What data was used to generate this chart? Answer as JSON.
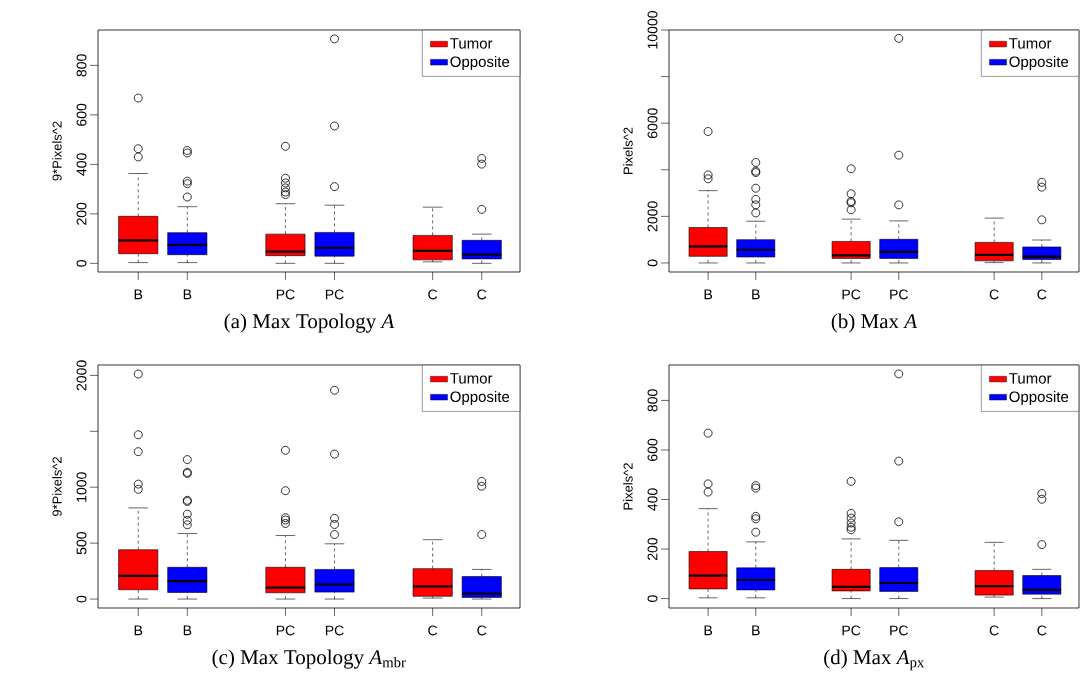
{
  "chart_data": [
    {
      "type": "box",
      "title": "(a) Max Topology *A*",
      "ylabel": "9*Pixels^2",
      "categories": [
        "B",
        "B",
        null,
        "PC",
        "PC",
        null,
        "C",
        "C"
      ],
      "ylim": [
        -35,
        943
      ],
      "yticks": [
        0,
        200,
        400,
        600,
        800
      ],
      "legend": "top right",
      "marker": "circle",
      "line_style": "dashed",
      "series": [
        {
          "name": "Tumor",
          "color": "#ff0000",
          "boxes": [
            {
              "low": 3,
              "q1": 39,
              "median": 93,
              "q3": 190,
              "high": 363,
              "outliers": [
                668,
                463,
                430
              ]
            },
            null,
            null,
            {
              "low": 0,
              "q1": 31,
              "median": 47,
              "q3": 118,
              "high": 241,
              "outliers": [
                278,
                288,
                305,
                325,
                344,
                473
              ]
            },
            null,
            null,
            {
              "low": 6,
              "q1": 14,
              "median": 50,
              "q3": 113,
              "high": 227
            },
            null
          ]
        },
        {
          "name": "Opposite",
          "color": "#0000ff",
          "boxes": [
            null,
            {
              "low": 3,
              "q1": 35,
              "median": 75,
              "q3": 124,
              "high": 229,
              "outliers": [
                268,
                322,
                332,
                446,
                456
              ]
            },
            null,
            null,
            {
              "low": 0,
              "q1": 29,
              "median": 63,
              "q3": 125,
              "high": 235,
              "outliers": [
                310,
                555,
                907
              ]
            },
            null,
            null,
            {
              "low": 0,
              "q1": 18,
              "median": 35,
              "q3": 93,
              "high": 118,
              "outliers": [
                218,
                401,
                424
              ]
            }
          ]
        }
      ]
    },
    {
      "type": "box",
      "title": "(b) Max *A*",
      "ylabel": "Pixels^2",
      "categories": [
        "B",
        "B",
        null,
        "PC",
        "PC",
        null,
        "C",
        "C"
      ],
      "ylim": [
        -388,
        10000
      ],
      "yticks": [
        0,
        2000,
        {
          "value": 4000,
          "label": null
        },
        6000,
        {
          "value": 8000,
          "label": null
        },
        10000
      ],
      "legend": "top right",
      "marker": "circle",
      "line_style": "dashed",
      "series": [
        {
          "name": "Tumor",
          "color": "#ff0000",
          "boxes": [
            {
              "low": 0,
              "q1": 284,
              "median": 716,
              "q3": 1522,
              "high": 3104,
              "outliers": [
                5642,
                3776,
                3612
              ]
            },
            null,
            null,
            {
              "low": 0,
              "q1": 194,
              "median": 328,
              "q3": 925,
              "high": 1881,
              "outliers": [
                2284,
                2582,
                2642,
                2970,
                4045
              ]
            },
            null,
            null,
            {
              "low": 15,
              "q1": 90,
              "median": 343,
              "q3": 881,
              "high": 1925
            },
            null
          ]
        },
        {
          "name": "Opposite",
          "color": "#0000ff",
          "boxes": [
            null,
            {
              "low": 0,
              "q1": 254,
              "median": 567,
              "q3": 1000,
              "high": 1791,
              "outliers": [
                2149,
                2493,
                2731,
                3209,
                3881,
                3940,
                4313
              ]
            },
            null,
            null,
            {
              "low": 0,
              "q1": 194,
              "median": 478,
              "q3": 1015,
              "high": 1806,
              "outliers": [
                2493,
                4627,
                9642
              ]
            },
            null,
            null,
            {
              "low": 0,
              "q1": 149,
              "median": 269,
              "q3": 687,
              "high": 985,
              "outliers": [
                1851,
                3254,
                3463
              ]
            }
          ]
        }
      ]
    },
    {
      "type": "box",
      "title": "(c) Max Topology *A*$_{mbr}$",
      "ylabel": "9*Pixels^2",
      "categories": [
        "B",
        "B",
        null,
        "PC",
        "PC",
        null,
        "C",
        "C"
      ],
      "ylim": [
        -80,
        2093
      ],
      "yticks": [
        0,
        500,
        1000,
        {
          "value": 1500,
          "label": null
        },
        2000
      ],
      "legend": "top right",
      "marker": "circle",
      "line_style": "dashed",
      "series": [
        {
          "name": "Tumor",
          "color": "#ff0000",
          "boxes": [
            {
              "low": 0,
              "q1": 83,
              "median": 207,
              "q3": 441,
              "high": 815,
              "outliers": [
                981,
                1028,
                1318,
                1469,
                2012
              ]
            },
            null,
            null,
            {
              "low": 0,
              "q1": 56,
              "median": 102,
              "q3": 284,
              "high": 568,
              "outliers": [
                676,
                707,
                728,
                969,
                1330
              ]
            },
            null,
            null,
            {
              "low": 9,
              "q1": 25,
              "median": 114,
              "q3": 272,
              "high": 531
            },
            null
          ]
        },
        {
          "name": "Opposite",
          "color": "#0000ff",
          "boxes": [
            null,
            {
              "low": 0,
              "q1": 59,
              "median": 160,
              "q3": 284,
              "high": 586,
              "outliers": [
                664,
                704,
                759,
                873,
                883,
                1123,
                1133,
                1247
              ]
            },
            null,
            null,
            {
              "low": 0,
              "q1": 62,
              "median": 130,
              "q3": 265,
              "high": 494,
              "outliers": [
                577,
                667,
                722,
                1296,
                1867
              ]
            },
            null,
            null,
            {
              "low": 0,
              "q1": 15,
              "median": 49,
              "q3": 201,
              "high": 265,
              "outliers": [
                577,
                1009,
                1052
              ]
            }
          ]
        }
      ]
    },
    {
      "type": "box",
      "title": "(d) Max *A*$_{px}$",
      "ylabel": "Pixels^2",
      "categories": [
        "B",
        "B",
        null,
        "PC",
        "PC",
        null,
        "C",
        "C"
      ],
      "ylim": [
        -38,
        943
      ],
      "yticks": [
        0,
        200,
        400,
        600,
        800
      ],
      "legend": "top right",
      "marker": "circle",
      "line_style": "dashed",
      "series": [
        {
          "name": "Tumor",
          "color": "#ff0000",
          "boxes": [
            {
              "low": 3,
              "q1": 39,
              "median": 93,
              "q3": 190,
              "high": 363,
              "outliers": [
                668,
                463,
                430
              ]
            },
            null,
            null,
            {
              "low": 0,
              "q1": 31,
              "median": 47,
              "q3": 118,
              "high": 241,
              "outliers": [
                278,
                288,
                305,
                325,
                344,
                473
              ]
            },
            null,
            null,
            {
              "low": 6,
              "q1": 14,
              "median": 50,
              "q3": 113,
              "high": 227
            },
            null
          ]
        },
        {
          "name": "Opposite",
          "color": "#0000ff",
          "boxes": [
            null,
            {
              "low": 3,
              "q1": 35,
              "median": 75,
              "q3": 124,
              "high": 229,
              "outliers": [
                268,
                322,
                332,
                446,
                456
              ]
            },
            null,
            null,
            {
              "low": 0,
              "q1": 29,
              "median": 63,
              "q3": 125,
              "high": 235,
              "outliers": [
                310,
                555,
                907
              ]
            },
            null,
            null,
            {
              "low": 0,
              "q1": 18,
              "median": 35,
              "q3": 93,
              "high": 118,
              "outliers": [
                218,
                401,
                424
              ]
            }
          ]
        }
      ]
    }
  ]
}
